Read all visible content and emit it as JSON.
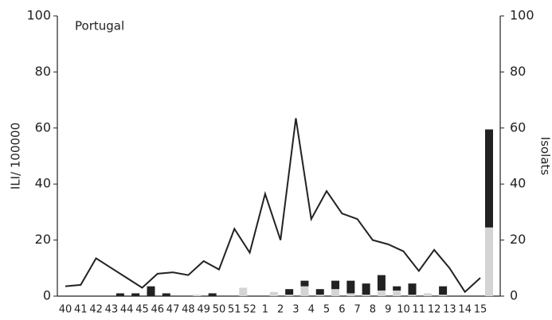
{
  "chart_data": {
    "type": "combo",
    "title": "Portugal",
    "y_label": "ILI/ 100000",
    "y2_label": "Isolats",
    "categories": [
      "40",
      "41",
      "42",
      "43",
      "44",
      "45",
      "46",
      "47",
      "48",
      "49",
      "50",
      "51",
      "52",
      "1",
      "2",
      "3",
      "4",
      "5",
      "6",
      "7",
      "8",
      "9",
      "10",
      "11",
      "12",
      "13",
      "14",
      "15"
    ],
    "ylim": [
      0,
      100
    ],
    "yticks": [
      0,
      20,
      40,
      60,
      80,
      100
    ],
    "y2lim": [
      0,
      100
    ],
    "y2ticks": [
      0,
      20,
      40,
      60,
      80,
      100
    ],
    "series": [
      {
        "type": "line",
        "axis": "y",
        "color": "#222222",
        "values": [
          3.5,
          4,
          13.5,
          10,
          6.5,
          3,
          8,
          8.5,
          7.5,
          12.5,
          9.5,
          24,
          15.5,
          36.5,
          20,
          63.5,
          27.5,
          37.5,
          29.5,
          27.5,
          20,
          18.5,
          16,
          9,
          16.5,
          10,
          1.5,
          6.5
        ]
      },
      {
        "type": "bar",
        "axis": "y2",
        "color": "#d4d4d4",
        "values": [
          0,
          0,
          0,
          0,
          0,
          0,
          0,
          0,
          0.5,
          0,
          0,
          3,
          0,
          1.5,
          0.5,
          3.5,
          0.5,
          2.5,
          1,
          0.5,
          2,
          2,
          0.5,
          1,
          0.5,
          0,
          0,
          24.5
        ]
      },
      {
        "type": "bar",
        "axis": "y2",
        "color": "#222222",
        "values": [
          0,
          0,
          0,
          1,
          1,
          3.5,
          1,
          0,
          0,
          1,
          0,
          0,
          0,
          0,
          2,
          2,
          2,
          3,
          4.5,
          4,
          5.5,
          1.5,
          4,
          0,
          3,
          0,
          0,
          35
        ]
      }
    ]
  }
}
